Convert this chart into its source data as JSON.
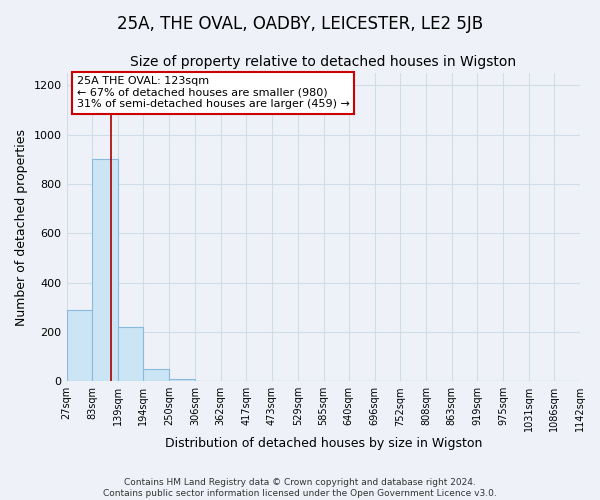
{
  "title": "25A, THE OVAL, OADBY, LEICESTER, LE2 5JB",
  "subtitle": "Size of property relative to detached houses in Wigston",
  "xlabel": "Distribution of detached houses by size in Wigston",
  "ylabel": "Number of detached properties",
  "bar_edges": [
    27,
    83,
    139,
    194,
    250,
    306,
    362,
    417,
    473,
    529,
    585,
    640,
    696,
    752,
    808,
    863,
    919,
    975,
    1031,
    1086,
    1142
  ],
  "bar_heights": [
    290,
    900,
    220,
    50,
    10,
    0,
    0,
    0,
    0,
    0,
    0,
    0,
    0,
    0,
    0,
    0,
    0,
    0,
    0,
    0
  ],
  "bar_color": "#cce5f5",
  "bar_edge_color": "#88bbdd",
  "red_line_x": 123,
  "annotation_line1": "25A THE OVAL: 123sqm",
  "annotation_line2": "← 67% of detached houses are smaller (980)",
  "annotation_line3": "31% of semi-detached houses are larger (459) →",
  "annotation_box_facecolor": "white",
  "annotation_box_edgecolor": "#cc0000",
  "red_line_color": "#aa0000",
  "ylim": [
    0,
    1250
  ],
  "yticks": [
    0,
    200,
    400,
    600,
    800,
    1000,
    1200
  ],
  "tick_labels": [
    "27sqm",
    "83sqm",
    "139sqm",
    "194sqm",
    "250sqm",
    "306sqm",
    "362sqm",
    "417sqm",
    "473sqm",
    "529sqm",
    "585sqm",
    "640sqm",
    "696sqm",
    "752sqm",
    "808sqm",
    "863sqm",
    "919sqm",
    "975sqm",
    "1031sqm",
    "1086sqm",
    "1142sqm"
  ],
  "footer_line1": "Contains HM Land Registry data © Crown copyright and database right 2024.",
  "footer_line2": "Contains public sector information licensed under the Open Government Licence v3.0.",
  "bg_color": "#eef2f8",
  "grid_color": "#d0dce8",
  "title_fontsize": 12,
  "subtitle_fontsize": 10,
  "axis_label_fontsize": 9,
  "tick_fontsize": 7,
  "annotation_fontsize": 8,
  "footer_fontsize": 6.5
}
